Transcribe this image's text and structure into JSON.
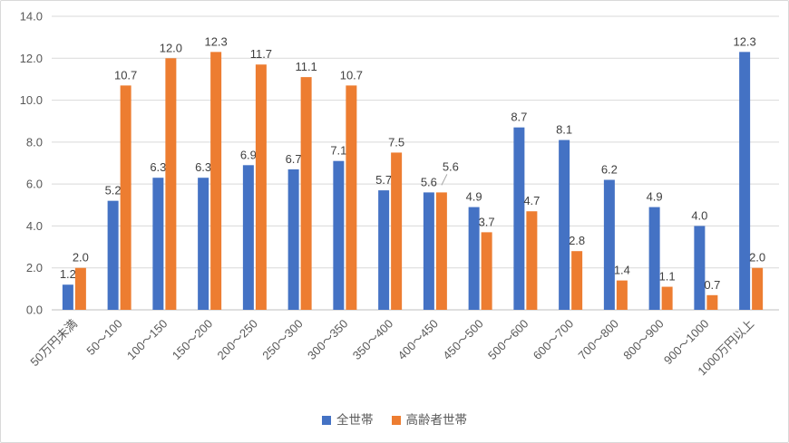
{
  "chart": {
    "background_color": "#FFFFFF",
    "border_color": "#D9D9D9"
  },
  "chart_data": {
    "type": "bar",
    "title": "",
    "categories": [
      "50万円未満",
      "50〜100",
      "100〜150",
      "150〜200",
      "200〜250",
      "250〜300",
      "300〜350",
      "350〜400",
      "400〜450",
      "450〜500",
      "500〜600",
      "600〜700",
      "700〜800",
      "800〜900",
      "900〜1000",
      "1000万円以上"
    ],
    "series": [
      {
        "name": "全世帯",
        "color": "#4472C4",
        "values": [
          1.2,
          5.2,
          6.3,
          6.3,
          6.9,
          6.7,
          7.1,
          5.7,
          5.6,
          4.9,
          8.7,
          8.1,
          6.2,
          4.9,
          4.0,
          12.3
        ]
      },
      {
        "name": "高齢者世帯",
        "color": "#ED7D31",
        "values": [
          2.0,
          10.7,
          12.0,
          12.3,
          11.7,
          11.1,
          10.7,
          7.5,
          5.6,
          3.7,
          4.7,
          2.8,
          1.4,
          1.1,
          0.7,
          2.0
        ]
      }
    ],
    "ylim": [
      0,
      14
    ],
    "ytick_step": 2,
    "ytick_labels": [
      "0.0",
      "2.0",
      "4.0",
      "6.0",
      "8.0",
      "10.0",
      "12.0",
      "14.0"
    ],
    "data_label_decimals": 1,
    "grid": true,
    "gridline_color": "#D9D9D9",
    "axis_line_color": "#BFBFBF",
    "tick_label_color": "#595959",
    "data_label_color": "#404040",
    "leader_line_color": "#A6A6A6",
    "x_label_rotation": -45,
    "legend_position": "bottom",
    "label_adjustments": [
      {
        "series": 1,
        "index": 8,
        "dx": 10,
        "dy": -17,
        "leader_line": true
      }
    ]
  }
}
